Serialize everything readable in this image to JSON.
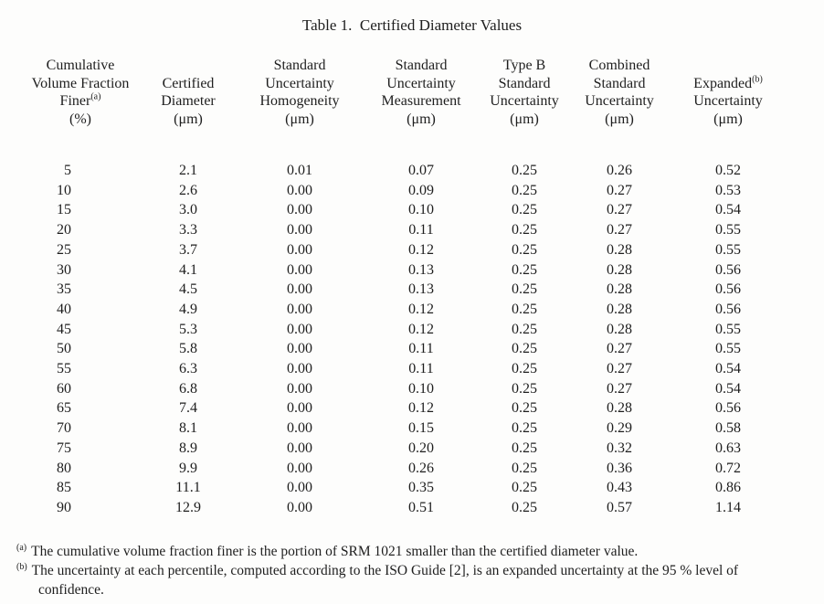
{
  "page": {
    "title": "Table 1.  Certified Diameter Values"
  },
  "table": {
    "header": [
      {
        "lines": [
          "Cumulative",
          "Volume Fraction",
          "Finer",
          "(%)"
        ],
        "sup": "(a)"
      },
      {
        "lines": [
          "Certified",
          "Diameter",
          "(μm)"
        ]
      },
      {
        "lines": [
          "Standard",
          "Uncertainty",
          "Homogeneity",
          "(μm)"
        ]
      },
      {
        "lines": [
          "Standard",
          "Uncertainty",
          "Measurement",
          "(μm)"
        ]
      },
      {
        "lines": [
          "Type B",
          "Standard",
          "Uncertainty",
          "(μm)"
        ]
      },
      {
        "lines": [
          "Combined",
          "Standard",
          "Uncertainty",
          "(μm)"
        ]
      },
      {
        "lines": [
          "Expanded",
          "Uncertainty",
          "(μm)"
        ],
        "sup": "(b)"
      }
    ],
    "rows": [
      [
        "5",
        "2.1",
        "0.01",
        "0.07",
        "0.25",
        "0.26",
        "0.52"
      ],
      [
        "10",
        "2.6",
        "0.00",
        "0.09",
        "0.25",
        "0.27",
        "0.53"
      ],
      [
        "15",
        "3.0",
        "0.00",
        "0.10",
        "0.25",
        "0.27",
        "0.54"
      ],
      [
        "20",
        "3.3",
        "0.00",
        "0.11",
        "0.25",
        "0.27",
        "0.55"
      ],
      [
        "25",
        "3.7",
        "0.00",
        "0.12",
        "0.25",
        "0.28",
        "0.55"
      ],
      [
        "30",
        "4.1",
        "0.00",
        "0.13",
        "0.25",
        "0.28",
        "0.56"
      ],
      [
        "35",
        "4.5",
        "0.00",
        "0.13",
        "0.25",
        "0.28",
        "0.56"
      ],
      [
        "40",
        "4.9",
        "0.00",
        "0.12",
        "0.25",
        "0.28",
        "0.56"
      ],
      [
        "45",
        "5.3",
        "0.00",
        "0.12",
        "0.25",
        "0.28",
        "0.55"
      ],
      [
        "50",
        "5.8",
        "0.00",
        "0.11",
        "0.25",
        "0.27",
        "0.55"
      ],
      [
        "55",
        "6.3",
        "0.00",
        "0.11",
        "0.25",
        "0.27",
        "0.54"
      ],
      [
        "60",
        "6.8",
        "0.00",
        "0.10",
        "0.25",
        "0.27",
        "0.54"
      ],
      [
        "65",
        "7.4",
        "0.00",
        "0.12",
        "0.25",
        "0.28",
        "0.56"
      ],
      [
        "70",
        "8.1",
        "0.00",
        "0.15",
        "0.25",
        "0.29",
        "0.58"
      ],
      [
        "75",
        "8.9",
        "0.00",
        "0.20",
        "0.25",
        "0.32",
        "0.63"
      ],
      [
        "80",
        "9.9",
        "0.00",
        "0.26",
        "0.25",
        "0.36",
        "0.72"
      ],
      [
        "85",
        "11.1",
        "0.00",
        "0.35",
        "0.25",
        "0.43",
        "0.86"
      ],
      [
        "90",
        "12.9",
        "0.00",
        "0.51",
        "0.25",
        "0.57",
        "1.14"
      ]
    ]
  },
  "footnotes": [
    {
      "marker": "(a)",
      "lines": [
        "The cumulative volume fraction finer is the portion of SRM 1021 smaller than the certified diameter value."
      ]
    },
    {
      "marker": "(b)",
      "lines": [
        "The uncertainty at each percentile, computed according to the ISO Guide [2], is an expanded uncertainty at the 95 % level of",
        "confidence."
      ]
    }
  ]
}
